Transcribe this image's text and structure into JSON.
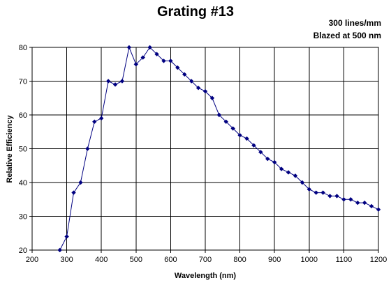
{
  "chart_data": {
    "type": "line",
    "title": "Grating #13",
    "annotations": [
      "300 lines/mm",
      "Blazed at 500 nm"
    ],
    "xlabel": "Wavelength (nm)",
    "ylabel": "Relative Efficiency",
    "xlim": [
      200,
      1200
    ],
    "ylim": [
      20,
      80
    ],
    "xticks": [
      200,
      300,
      400,
      500,
      600,
      700,
      800,
      900,
      1000,
      1100,
      1200
    ],
    "yticks": [
      20,
      30,
      40,
      50,
      60,
      70,
      80
    ],
    "grid": true,
    "legend": "none",
    "series_color": "#000080",
    "points": [
      [
        280,
        20
      ],
      [
        300,
        24
      ],
      [
        320,
        37
      ],
      [
        340,
        40
      ],
      [
        360,
        50
      ],
      [
        380,
        58
      ],
      [
        400,
        59
      ],
      [
        420,
        70
      ],
      [
        440,
        69
      ],
      [
        460,
        70
      ],
      [
        480,
        80
      ],
      [
        500,
        75
      ],
      [
        520,
        77
      ],
      [
        540,
        80
      ],
      [
        560,
        78
      ],
      [
        580,
        76
      ],
      [
        600,
        76
      ],
      [
        620,
        74
      ],
      [
        640,
        72
      ],
      [
        660,
        70
      ],
      [
        680,
        68
      ],
      [
        700,
        67
      ],
      [
        720,
        65
      ],
      [
        740,
        60
      ],
      [
        760,
        58
      ],
      [
        780,
        56
      ],
      [
        800,
        54
      ],
      [
        820,
        53
      ],
      [
        840,
        51
      ],
      [
        860,
        49
      ],
      [
        880,
        47
      ],
      [
        900,
        46
      ],
      [
        920,
        44
      ],
      [
        940,
        43
      ],
      [
        960,
        42
      ],
      [
        980,
        40
      ],
      [
        1000,
        38
      ],
      [
        1020,
        37
      ],
      [
        1040,
        37
      ],
      [
        1060,
        36
      ],
      [
        1080,
        36
      ],
      [
        1100,
        35
      ],
      [
        1120,
        35
      ],
      [
        1140,
        34
      ],
      [
        1160,
        34
      ],
      [
        1180,
        33
      ],
      [
        1200,
        32
      ]
    ]
  }
}
